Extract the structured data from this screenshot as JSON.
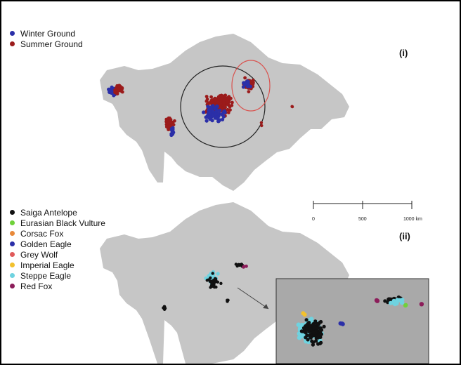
{
  "panel1": {
    "label": "(i)",
    "legend": [
      {
        "label": "Winter Ground",
        "color": "#2b2fa8"
      },
      {
        "label": "Summer Ground",
        "color": "#9b1b1b"
      }
    ]
  },
  "panel2": {
    "label": "(ii)",
    "legend": [
      {
        "label": "Saiga Antelope",
        "color": "#111111"
      },
      {
        "label": "Eurasian Black Vulture",
        "color": "#6fd13a"
      },
      {
        "label": "Corsac Fox",
        "color": "#e8893a"
      },
      {
        "label": "Golden Eagle",
        "color": "#2b2fa8"
      },
      {
        "label": "Grey Wolf",
        "color": "#e05a5a"
      },
      {
        "label": "Imperial Eagle",
        "color": "#f2c12e"
      },
      {
        "label": "Steppe Eagle",
        "color": "#6fd3e0"
      },
      {
        "label": "Red Fox",
        "color": "#8c1d5a"
      }
    ]
  },
  "scale_bar": {
    "ticks": [
      "0",
      "500",
      "1000 km"
    ]
  },
  "colors": {
    "land": "#c6c6c6",
    "inset_background": "#a9a9a9",
    "range_circle": "#222222",
    "subrange_circle": "#d9534f"
  }
}
